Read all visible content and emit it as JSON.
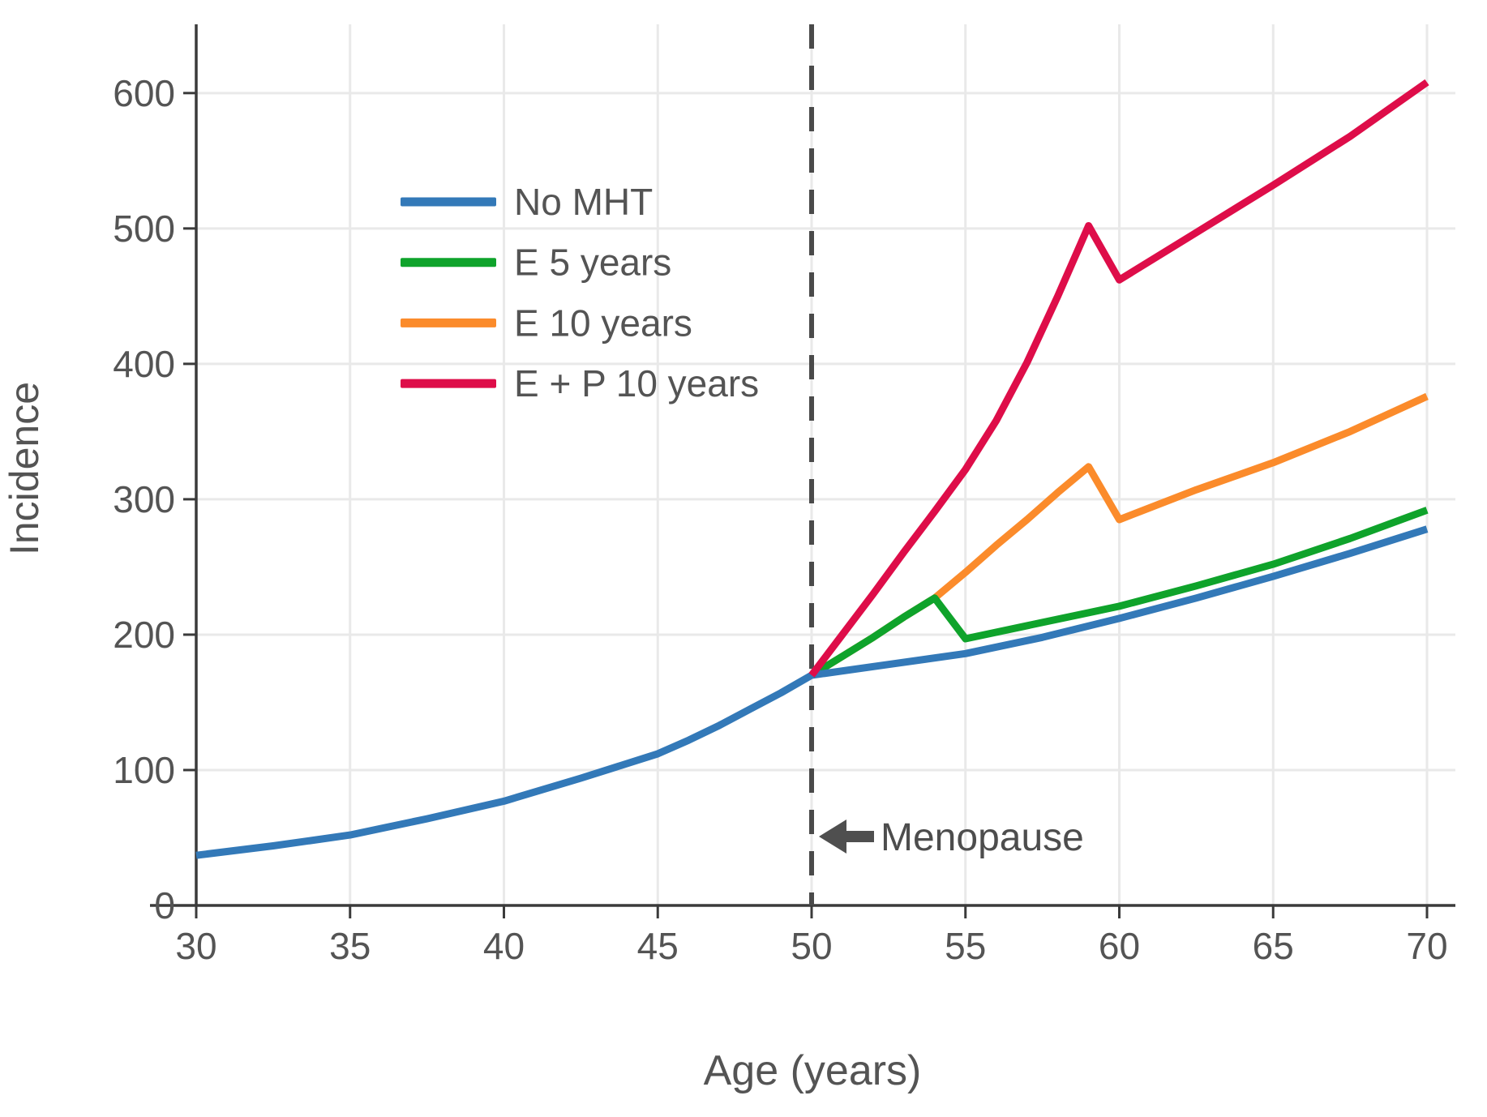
{
  "chart_data": {
    "type": "line",
    "title": "",
    "xlabel": "Age (years)",
    "ylabel": "Incidence",
    "xlim": [
      30,
      70.9
    ],
    "ylim": [
      0,
      651
    ],
    "x_ticks": [
      30,
      35,
      40,
      45,
      50,
      55,
      60,
      65,
      70
    ],
    "y_ticks": [
      0,
      100,
      200,
      300,
      400,
      500,
      600
    ],
    "grid": true,
    "legend_position": "upper-left-inside",
    "annotation": {
      "text": "Menopause",
      "x": 50,
      "y": 50,
      "arrow": "left-pointing-arrow"
    },
    "menopause_line_x": 50,
    "series": [
      {
        "name": "No MHT",
        "color": "#3379B8",
        "x": [
          30,
          32.5,
          35,
          37.5,
          40,
          42.5,
          45,
          46,
          47,
          48,
          49,
          50,
          52.5,
          55,
          57.5,
          60,
          62.5,
          65,
          67.5,
          70
        ],
        "y": [
          37,
          44,
          52,
          64,
          77,
          94,
          112,
          122,
          133,
          145,
          157,
          170,
          178,
          186,
          198,
          212,
          227,
          243,
          260,
          278
        ]
      },
      {
        "name": "E 5 years",
        "color": "#0FA32B",
        "x": [
          50,
          51,
          52,
          53,
          54,
          55,
          57.5,
          60,
          62.5,
          65,
          67.5,
          70
        ],
        "y": [
          170,
          184,
          198,
          213,
          227,
          197,
          209,
          221,
          236,
          252,
          271,
          292
        ]
      },
      {
        "name": "E 10 years",
        "color": "#FB8B2B",
        "x": [
          50,
          51,
          52,
          53,
          54,
          55,
          56,
          57,
          58,
          59,
          60,
          62.5,
          65,
          67.5,
          70
        ],
        "y": [
          170,
          184,
          198,
          213,
          227,
          246,
          266,
          285,
          305,
          324,
          285,
          307,
          327,
          350,
          376
        ]
      },
      {
        "name": "E + P 10 years",
        "color": "#DE0D49",
        "x": [
          50,
          51,
          52,
          53,
          54,
          55,
          56,
          57,
          58,
          59,
          60,
          62.5,
          65,
          67.5,
          70
        ],
        "y": [
          170,
          200,
          230,
          261,
          291,
          322,
          358,
          401,
          450,
          502,
          462,
          497,
          532,
          568,
          608
        ]
      }
    ],
    "colors": {
      "grid": "#E9E9E9",
      "axis": "#3B3B3B",
      "text": "#545454",
      "dashed_line": "#4A4A4A"
    }
  }
}
